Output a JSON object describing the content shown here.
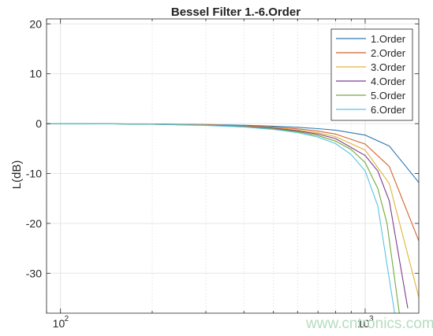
{
  "chart_data": {
    "type": "line",
    "title": "Bessel Filter 1.-6.Order",
    "xlabel": "",
    "ylabel": "L(dB)",
    "xscale": "log",
    "xlim": [
      90,
      1500
    ],
    "ylim": [
      -38,
      21
    ],
    "x_ticks": [
      {
        "base": "10",
        "exp": "2",
        "value": 100
      },
      {
        "base": "10",
        "exp": "3",
        "value": 1000
      }
    ],
    "y_ticks": [
      20,
      10,
      0,
      -10,
      -20,
      -30
    ],
    "grid": true,
    "legend_position": "top-right",
    "series": [
      {
        "name": "1.Order",
        "color": "#2f7bb3",
        "x": [
          90,
          100,
          150,
          200,
          300,
          400,
          500,
          600,
          700,
          800,
          1000,
          1200,
          1500
        ],
        "y": [
          0,
          -0.01,
          -0.04,
          -0.08,
          -0.18,
          -0.33,
          -0.51,
          -0.74,
          -1.0,
          -1.3,
          -2.3,
          -4.5,
          -11.8
        ]
      },
      {
        "name": "2.Order",
        "color": "#d4622b",
        "x": [
          90,
          100,
          150,
          200,
          300,
          400,
          500,
          600,
          700,
          800,
          1000,
          1200,
          1500
        ],
        "y": [
          0,
          -0.01,
          -0.05,
          -0.1,
          -0.24,
          -0.45,
          -0.72,
          -1.06,
          -1.5,
          -2.1,
          -4.1,
          -8.6,
          -23.5
        ]
      },
      {
        "name": "3.Order",
        "color": "#e0b43a",
        "x": [
          90,
          100,
          150,
          200,
          300,
          400,
          500,
          600,
          700,
          800,
          1000,
          1200,
          1500
        ],
        "y": [
          0,
          -0.01,
          -0.05,
          -0.11,
          -0.27,
          -0.52,
          -0.85,
          -1.3,
          -1.85,
          -2.6,
          -5.3,
          -12.0,
          -34.8
        ]
      },
      {
        "name": "4.Order",
        "color": "#7e3b8e",
        "x": [
          90,
          100,
          150,
          200,
          300,
          400,
          500,
          600,
          700,
          800,
          1000,
          1100,
          1200,
          1380
        ],
        "y": [
          0,
          -0.01,
          -0.05,
          -0.12,
          -0.3,
          -0.57,
          -0.95,
          -1.45,
          -2.1,
          -3.0,
          -6.4,
          -9.5,
          -15.5,
          -37.0
        ]
      },
      {
        "name": "5.Order",
        "color": "#75ab3a",
        "x": [
          90,
          100,
          150,
          200,
          300,
          400,
          500,
          600,
          700,
          800,
          900,
          1000,
          1100,
          1180,
          1295
        ],
        "y": [
          0,
          -0.01,
          -0.05,
          -0.13,
          -0.33,
          -0.62,
          -1.05,
          -1.62,
          -2.4,
          -3.5,
          -5.2,
          -7.8,
          -13.0,
          -20.0,
          -38.0
        ]
      },
      {
        "name": "6.Order",
        "color": "#5ac3e1",
        "x": [
          90,
          100,
          150,
          200,
          300,
          400,
          500,
          600,
          700,
          800,
          900,
          1000,
          1100,
          1250
        ],
        "y": [
          0,
          -0.01,
          -0.06,
          -0.14,
          -0.36,
          -0.68,
          -1.15,
          -1.8,
          -2.7,
          -4.0,
          -6.2,
          -9.5,
          -16.5,
          -38.0
        ]
      }
    ]
  },
  "watermark": "www.cntronics.com"
}
